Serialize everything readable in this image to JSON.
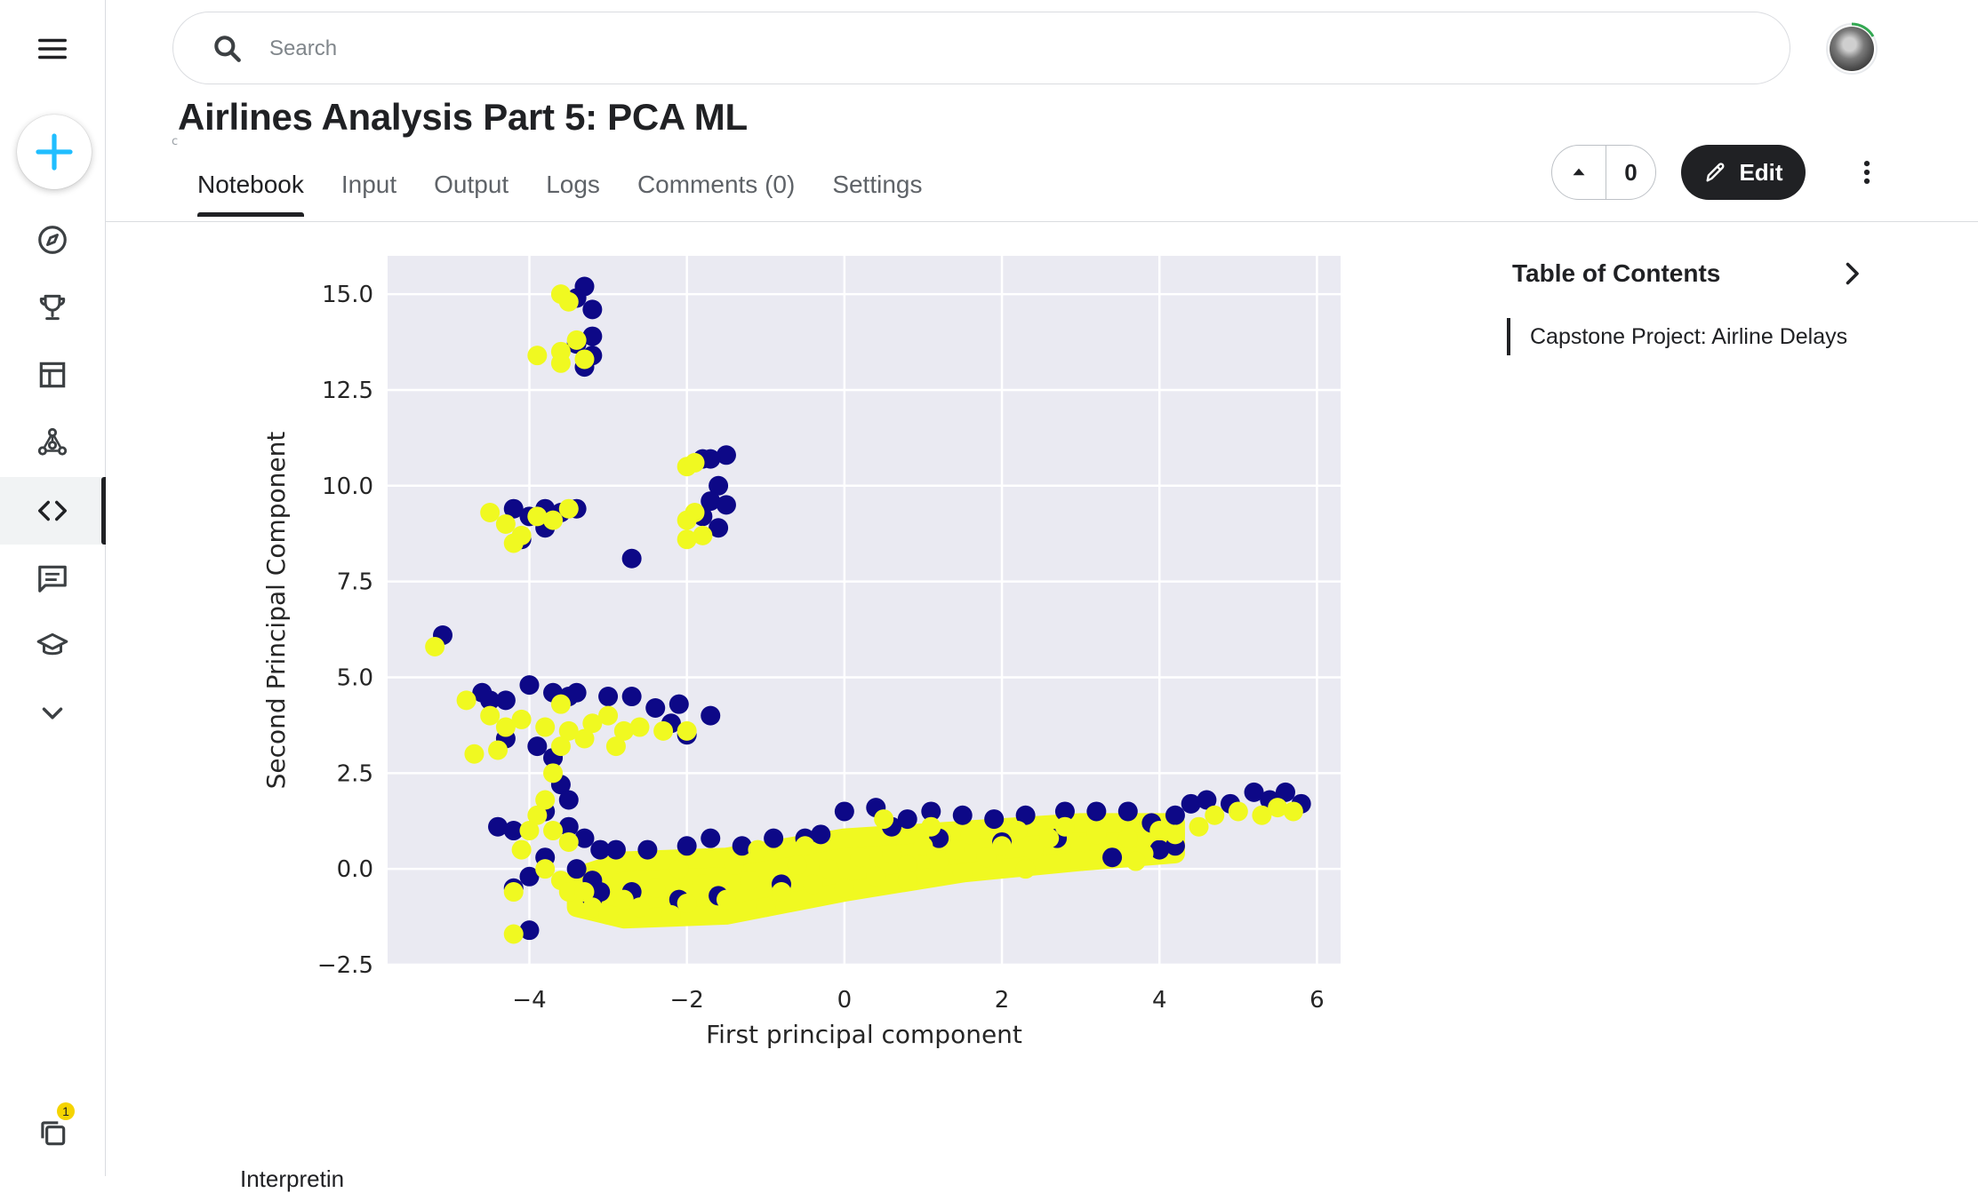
{
  "search": {
    "placeholder": "Search"
  },
  "notebook": {
    "title": "Airlines Analysis Part 5: PCA ML",
    "subtitle_fragment": "c",
    "tabs": [
      "Notebook",
      "Input",
      "Output",
      "Logs",
      "Comments (0)",
      "Settings"
    ],
    "active_tab": "Notebook",
    "vote_count": "0",
    "edit_label": "Edit"
  },
  "sidebar": {
    "items": [
      "menu-icon",
      "create-icon",
      "compass-icon",
      "trophy-icon",
      "table-icon",
      "models-icon",
      "code-icon",
      "discussion-icon",
      "learn-icon",
      "expand-more-icon",
      "recent-icon"
    ],
    "active_item": "code-icon",
    "notification_count": "1"
  },
  "toc": {
    "title": "Table of Contents",
    "items": [
      "Capstone Project: Airline Delays"
    ]
  },
  "below_chart_fragment": "Interpretin",
  "colors": {
    "series_dark": "#0d0887",
    "series_light": "#f0f921",
    "plot_bg": "#eaeaf2",
    "primary_dark": "#202124",
    "create_plus": "#20beff"
  },
  "chart_data": {
    "type": "scatter",
    "title": "",
    "xlabel": "First principal component",
    "ylabel": "Second Principal Component",
    "xlim": [
      -5.8,
      6.3
    ],
    "ylim": [
      -2.5,
      16.0
    ],
    "xticks": [
      -4,
      -2,
      0,
      2,
      4,
      6
    ],
    "yticks": [
      -2.5,
      0.0,
      2.5,
      5.0,
      7.5,
      10.0,
      12.5,
      15.0
    ],
    "xtick_labels": [
      "−4",
      "−2",
      "0",
      "2",
      "4",
      "6"
    ],
    "ytick_labels": [
      "−2.5",
      "0.0",
      "2.5",
      "5.0",
      "7.5",
      "10.0",
      "12.5",
      "15.0"
    ],
    "grid": true,
    "series": [
      {
        "color": "#0d0887",
        "points": [
          [
            -3.3,
            15.2
          ],
          [
            -3.4,
            14.9
          ],
          [
            -3.2,
            14.6
          ],
          [
            -3.2,
            13.9
          ],
          [
            -3.4,
            13.7
          ],
          [
            -3.2,
            13.4
          ],
          [
            -3.3,
            13.1
          ],
          [
            -1.5,
            10.8
          ],
          [
            -1.7,
            10.7
          ],
          [
            -1.8,
            10.7
          ],
          [
            -1.6,
            10.0
          ],
          [
            -1.7,
            9.6
          ],
          [
            -1.5,
            9.5
          ],
          [
            -1.8,
            9.2
          ],
          [
            -1.6,
            8.9
          ],
          [
            -4.2,
            9.4
          ],
          [
            -4.0,
            9.2
          ],
          [
            -3.8,
            9.4
          ],
          [
            -3.6,
            9.3
          ],
          [
            -3.4,
            9.4
          ],
          [
            -3.8,
            8.9
          ],
          [
            -4.1,
            8.6
          ],
          [
            -2.7,
            8.1
          ],
          [
            -5.1,
            6.1
          ],
          [
            -4.6,
            4.6
          ],
          [
            -4.5,
            4.4
          ],
          [
            -4.3,
            4.4
          ],
          [
            -4.0,
            4.8
          ],
          [
            -3.7,
            4.6
          ],
          [
            -3.5,
            4.5
          ],
          [
            -3.4,
            4.6
          ],
          [
            -3.0,
            4.5
          ],
          [
            -2.7,
            4.5
          ],
          [
            -2.4,
            4.2
          ],
          [
            -2.1,
            4.3
          ],
          [
            -1.7,
            4.0
          ],
          [
            -2.2,
            3.8
          ],
          [
            -2.0,
            3.5
          ],
          [
            -4.3,
            3.4
          ],
          [
            -3.9,
            3.2
          ],
          [
            -3.7,
            2.9
          ],
          [
            -3.6,
            2.2
          ],
          [
            -3.5,
            1.8
          ],
          [
            -3.8,
            1.5
          ],
          [
            -3.5,
            1.1
          ],
          [
            -4.4,
            1.1
          ],
          [
            -4.2,
            1.0
          ],
          [
            -3.3,
            0.8
          ],
          [
            -3.1,
            0.5
          ],
          [
            -3.8,
            0.3
          ],
          [
            -4.0,
            -0.2
          ],
          [
            -3.4,
            0.0
          ],
          [
            -3.2,
            -0.3
          ],
          [
            -4.2,
            -0.5
          ],
          [
            -3.2,
            -0.8
          ],
          [
            -4.0,
            -1.6
          ],
          [
            -2.9,
            0.5
          ],
          [
            -2.5,
            0.5
          ],
          [
            -2.0,
            0.6
          ],
          [
            -1.7,
            0.8
          ],
          [
            -1.3,
            0.6
          ],
          [
            -0.9,
            0.8
          ],
          [
            -0.5,
            0.8
          ],
          [
            0.0,
            1.5
          ],
          [
            0.4,
            1.6
          ],
          [
            0.8,
            1.3
          ],
          [
            1.1,
            1.5
          ],
          [
            1.5,
            1.4
          ],
          [
            1.9,
            1.3
          ],
          [
            2.3,
            1.4
          ],
          [
            2.8,
            1.5
          ],
          [
            3.2,
            1.5
          ],
          [
            3.6,
            1.5
          ],
          [
            3.9,
            1.2
          ],
          [
            4.2,
            1.4
          ],
          [
            4.4,
            1.7
          ],
          [
            4.6,
            1.8
          ],
          [
            4.9,
            1.7
          ],
          [
            5.2,
            2.0
          ],
          [
            5.4,
            1.8
          ],
          [
            5.6,
            2.0
          ],
          [
            5.8,
            1.7
          ],
          [
            4.2,
            0.6
          ],
          [
            4.0,
            0.5
          ],
          [
            3.4,
            0.3
          ],
          [
            2.7,
            0.8
          ],
          [
            2.0,
            0.7
          ],
          [
            1.2,
            0.8
          ],
          [
            0.6,
            1.1
          ],
          [
            -0.3,
            0.9
          ],
          [
            -1.6,
            -0.7
          ],
          [
            -2.1,
            -0.8
          ],
          [
            -2.7,
            -0.6
          ],
          [
            -3.1,
            -0.6
          ],
          [
            -0.8,
            -0.4
          ]
        ]
      },
      {
        "color": "#f0f921",
        "points": [
          [
            -3.6,
            15.0
          ],
          [
            -3.5,
            14.8
          ],
          [
            -3.4,
            13.8
          ],
          [
            -3.6,
            13.5
          ],
          [
            -3.3,
            13.3
          ],
          [
            -3.6,
            13.2
          ],
          [
            -3.9,
            13.4
          ],
          [
            -2.0,
            10.5
          ],
          [
            -1.9,
            10.6
          ],
          [
            -1.9,
            9.3
          ],
          [
            -2.0,
            9.1
          ],
          [
            -1.8,
            8.7
          ],
          [
            -2.0,
            8.6
          ],
          [
            -4.5,
            9.3
          ],
          [
            -4.3,
            9.0
          ],
          [
            -4.1,
            8.7
          ],
          [
            -4.2,
            8.5
          ],
          [
            -3.9,
            9.2
          ],
          [
            -3.7,
            9.1
          ],
          [
            -3.5,
            9.4
          ],
          [
            -5.2,
            5.8
          ],
          [
            -4.8,
            4.4
          ],
          [
            -4.5,
            4.0
          ],
          [
            -4.3,
            3.7
          ],
          [
            -4.1,
            3.9
          ],
          [
            -3.8,
            3.7
          ],
          [
            -3.6,
            4.3
          ],
          [
            -3.5,
            3.6
          ],
          [
            -3.2,
            3.8
          ],
          [
            -3.0,
            4.0
          ],
          [
            -2.8,
            3.6
          ],
          [
            -2.6,
            3.7
          ],
          [
            -2.3,
            3.6
          ],
          [
            -2.0,
            3.6
          ],
          [
            -3.3,
            3.4
          ],
          [
            -2.9,
            3.2
          ],
          [
            -4.7,
            3.0
          ],
          [
            -4.4,
            3.1
          ],
          [
            -3.6,
            3.2
          ],
          [
            -3.7,
            2.5
          ],
          [
            -3.8,
            1.8
          ],
          [
            -3.9,
            1.4
          ],
          [
            -4.0,
            1.0
          ],
          [
            -3.7,
            1.0
          ],
          [
            -3.5,
            0.7
          ],
          [
            -4.1,
            0.5
          ],
          [
            -3.8,
            0.0
          ],
          [
            -3.6,
            -0.3
          ],
          [
            -3.5,
            -0.6
          ],
          [
            -4.2,
            -0.6
          ],
          [
            -4.2,
            -1.7
          ],
          [
            -3.3,
            -0.6
          ],
          [
            -3.2,
            -1.0
          ],
          [
            -3.0,
            -1.2
          ],
          [
            -2.8,
            -0.8
          ],
          [
            -2.6,
            -1.0
          ],
          [
            -2.4,
            -0.5
          ],
          [
            -2.2,
            -1.2
          ],
          [
            -2.0,
            -0.9
          ],
          [
            -1.8,
            -0.4
          ],
          [
            -1.5,
            -0.8
          ],
          [
            -1.2,
            -0.3
          ],
          [
            -1.0,
            -1.0
          ],
          [
            -0.8,
            -0.6
          ],
          [
            -0.6,
            0.1
          ],
          [
            -0.4,
            -0.4
          ],
          [
            -0.2,
            0.0
          ],
          [
            0.0,
            -0.5
          ],
          [
            0.2,
            0.3
          ],
          [
            0.4,
            -0.2
          ],
          [
            0.6,
            0.4
          ],
          [
            0.8,
            0.1
          ],
          [
            1.0,
            0.6
          ],
          [
            1.2,
            0.2
          ],
          [
            1.4,
            0.5
          ],
          [
            1.6,
            0.9
          ],
          [
            1.8,
            0.3
          ],
          [
            2.0,
            0.6
          ],
          [
            2.2,
            1.0
          ],
          [
            2.4,
            0.5
          ],
          [
            2.6,
            0.8
          ],
          [
            2.8,
            1.1
          ],
          [
            3.0,
            0.6
          ],
          [
            3.2,
            0.9
          ],
          [
            3.4,
            1.2
          ],
          [
            3.6,
            0.8
          ],
          [
            3.8,
            0.4
          ],
          [
            4.0,
            1.0
          ],
          [
            4.2,
            0.9
          ],
          [
            4.5,
            1.1
          ],
          [
            4.7,
            1.4
          ],
          [
            5.0,
            1.5
          ],
          [
            5.3,
            1.4
          ],
          [
            5.5,
            1.6
          ],
          [
            5.7,
            1.5
          ],
          [
            3.7,
            0.2
          ],
          [
            3.0,
            0.2
          ],
          [
            2.3,
            0.0
          ],
          [
            1.5,
            -0.1
          ],
          [
            0.8,
            -0.3
          ],
          [
            -0.5,
            0.6
          ],
          [
            -1.4,
            0.1
          ],
          [
            -2.1,
            0.0
          ],
          [
            -2.7,
            0.2
          ],
          [
            -3.0,
            0.0
          ],
          [
            0.5,
            1.3
          ],
          [
            1.1,
            1.1
          ],
          [
            -1.1,
            0.5
          ]
        ]
      }
    ],
    "dense_band": {
      "color": "#f0f921",
      "polygon": [
        [
          -3.4,
          -0.2
        ],
        [
          -2.8,
          0.2
        ],
        [
          -1.5,
          0.3
        ],
        [
          0.0,
          0.8
        ],
        [
          1.5,
          1.0
        ],
        [
          3.0,
          1.2
        ],
        [
          4.2,
          1.2
        ],
        [
          4.2,
          0.4
        ],
        [
          3.0,
          0.2
        ],
        [
          1.5,
          -0.1
        ],
        [
          0.0,
          -0.6
        ],
        [
          -1.5,
          -1.2
        ],
        [
          -2.8,
          -1.3
        ],
        [
          -3.4,
          -1.0
        ]
      ]
    }
  }
}
